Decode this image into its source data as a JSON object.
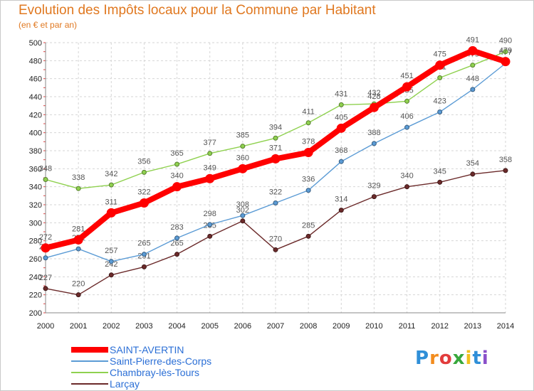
{
  "header": {
    "title": "Evolution des Impôts locaux pour la Commune par Habitant",
    "subtitle": "(en € et par an)"
  },
  "logo": {
    "text": "Proxiti"
  },
  "chart_data": {
    "type": "line",
    "title": "Evolution des Impôts locaux pour la Commune par Habitant",
    "subtitle": "(en € et par an)",
    "xlabel": "",
    "ylabel": "",
    "x": [
      2000,
      2001,
      2002,
      2003,
      2004,
      2005,
      2006,
      2007,
      2008,
      2009,
      2010,
      2011,
      2012,
      2013,
      2014
    ],
    "ylim": [
      200,
      500
    ],
    "yticks": [
      200,
      220,
      240,
      260,
      280,
      300,
      320,
      340,
      360,
      380,
      400,
      420,
      440,
      460,
      480,
      500
    ],
    "grid": true,
    "legend_position": "bottom-left",
    "series": [
      {
        "name": "Larçay",
        "color": "#6b2a2a",
        "values": [
          227,
          220,
          242,
          251,
          265,
          285,
          302,
          270,
          285,
          314,
          329,
          340,
          345,
          354,
          358
        ]
      },
      {
        "name": "Saint-Pierre-des-Corps",
        "color": "#5b9bd5",
        "values": [
          261,
          271,
          257,
          265,
          283,
          298,
          308,
          322,
          336,
          368,
          388,
          406,
          423,
          448,
          477
        ]
      },
      {
        "name": "Chambray-lès-Tours",
        "color": "#8fd14f",
        "values": [
          348,
          338,
          342,
          356,
          365,
          377,
          385,
          394,
          411,
          431,
          432,
          435,
          461,
          475,
          490
        ]
      },
      {
        "name": "SAINT-AVERTIN",
        "color": "#ff0000",
        "values": [
          272,
          281,
          311,
          322,
          340,
          349,
          360,
          371,
          378,
          405,
          428,
          451,
          475,
          491,
          479
        ]
      }
    ],
    "legend_order": [
      "SAINT-AVERTIN",
      "Saint-Pierre-des-Corps",
      "Chambray-lès-Tours",
      "Larçay"
    ]
  }
}
